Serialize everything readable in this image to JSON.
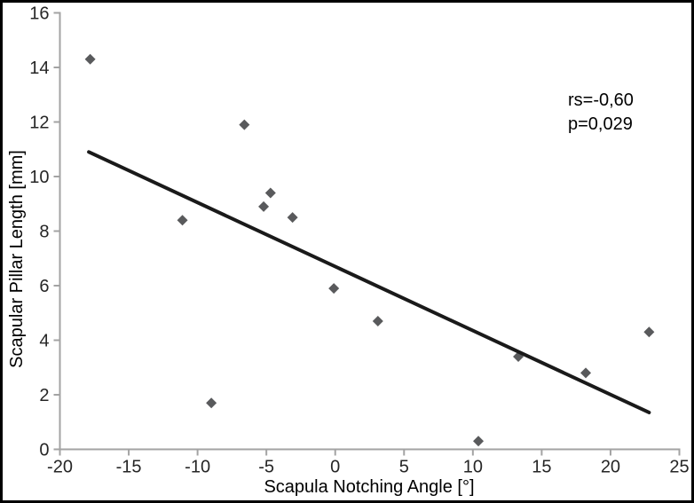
{
  "figure": {
    "background": "#ffffff",
    "frame_color": "#000000"
  },
  "chart_data": {
    "type": "scatter",
    "title": "",
    "xlabel": "Scapula Notching Angle [°]",
    "ylabel": "Scapular Pillar Length [mm]",
    "xlim": [
      -20,
      25
    ],
    "ylim": [
      0,
      16
    ],
    "x_ticks": [
      -20,
      -15,
      -10,
      -5,
      0,
      5,
      10,
      15,
      20,
      25
    ],
    "y_ticks": [
      0,
      2,
      4,
      6,
      8,
      10,
      12,
      14,
      16
    ],
    "grid": false,
    "legend": false,
    "points": [
      {
        "x": -17.8,
        "y": 14.3
      },
      {
        "x": -11.1,
        "y": 8.4
      },
      {
        "x": -9.0,
        "y": 1.7
      },
      {
        "x": -6.6,
        "y": 11.9
      },
      {
        "x": -5.2,
        "y": 8.9
      },
      {
        "x": -4.7,
        "y": 9.4
      },
      {
        "x": -3.1,
        "y": 8.5
      },
      {
        "x": -0.1,
        "y": 5.9
      },
      {
        "x": 3.1,
        "y": 4.7
      },
      {
        "x": 10.4,
        "y": 0.3
      },
      {
        "x": 13.3,
        "y": 3.4
      },
      {
        "x": 18.2,
        "y": 2.8
      },
      {
        "x": 22.8,
        "y": 4.3
      }
    ],
    "trendline": {
      "x1": -17.9,
      "y1": 10.9,
      "x2": 22.8,
      "y2": 1.35
    },
    "annotation": {
      "lines": [
        "rs=-0,60",
        "p=0,029"
      ]
    },
    "colors": {
      "marker": "#595a5c",
      "trendline": "#1a1a1a",
      "axis": "#a3a3a3",
      "text": "#262626"
    }
  }
}
